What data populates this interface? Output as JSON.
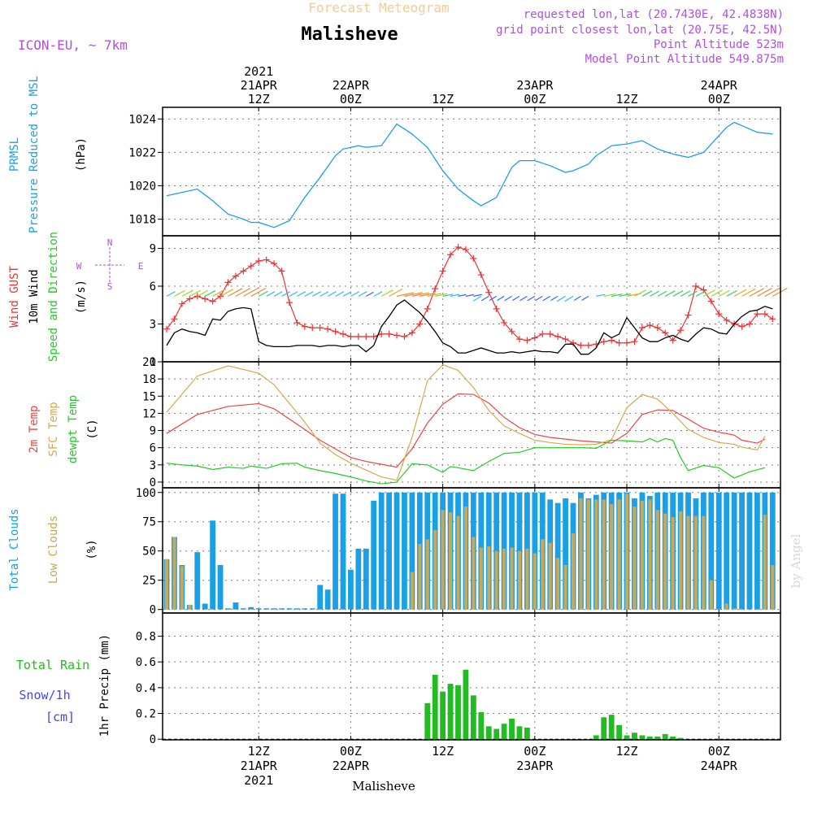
{
  "header": {
    "title": "Malisheve",
    "subtitle": "Forecast Meteogram",
    "model": "ICON-EU, ~ 7km",
    "requested": "requested lon,lat (20.7430E, 42.4838N)",
    "gridpoint": "grid point closest lon,lat (20.75E, 42.5N)",
    "point_alt": "Point Altitude 523m",
    "model_alt": "Model Point Altitude 549.875m"
  },
  "footer": {
    "location": "Malisheve",
    "watermark": "by Angel"
  },
  "colors": {
    "pressure": "#1aa0e6",
    "gust": "#ee3333",
    "wind": "#000000",
    "temp2m": "#ee4444",
    "sfc": "#d9a84e",
    "dewpt": "#22cc22",
    "total_cloud": "#1aa0e6",
    "low_cloud": "#c9a857",
    "rain": "#22bb22",
    "snow": "#4444ee",
    "purple": "#b04fdf"
  },
  "time_axis": {
    "top_labels": [
      {
        "h": 12,
        "lines": [
          "2021",
          "21APR",
          "12Z"
        ]
      },
      {
        "h": 24,
        "lines": [
          "22APR",
          "00Z"
        ]
      },
      {
        "h": 36,
        "lines": [
          "12Z"
        ]
      },
      {
        "h": 48,
        "lines": [
          "23APR",
          "00Z"
        ]
      },
      {
        "h": 60,
        "lines": [
          "12Z"
        ]
      },
      {
        "h": 72,
        "lines": [
          "24APR",
          "00Z"
        ]
      }
    ],
    "bottom_labels": [
      {
        "h": 12,
        "lines": [
          "12Z",
          "21APR",
          "2021"
        ]
      },
      {
        "h": 24,
        "lines": [
          "00Z",
          "22APR"
        ]
      },
      {
        "h": 36,
        "lines": [
          "12Z"
        ]
      },
      {
        "h": 48,
        "lines": [
          "00Z",
          "23APR"
        ]
      },
      {
        "h": 60,
        "lines": [
          "12Z"
        ]
      },
      {
        "h": 72,
        "lines": [
          "00Z",
          "24APR"
        ]
      }
    ]
  },
  "panel_labels": {
    "pressure": [
      {
        "text": "PRMSL",
        "color": "pressure"
      },
      {
        "text": "Pressure Reduced to MSL",
        "color": "pressure"
      },
      {
        "text": "(hPa)",
        "color": "wind"
      }
    ],
    "wind": [
      {
        "text": "Wind GUST",
        "color": "gust"
      },
      {
        "text": "10m Wind",
        "color": "wind"
      },
      {
        "text": "Speed and Direction",
        "color": "dewpt"
      },
      {
        "text": "(m/s)",
        "color": "wind"
      }
    ],
    "compass": {
      "n": "N",
      "s": "S",
      "w": "W",
      "e": "E"
    },
    "temp": [
      {
        "text": "2m Temp",
        "color": "temp2m"
      },
      {
        "text": "SFC Temp",
        "color": "sfc"
      },
      {
        "text": "dewpt Temp",
        "color": "dewpt"
      },
      {
        "text": "(C)",
        "color": "wind"
      }
    ],
    "cloud": [
      {
        "text": "Total Clouds",
        "color": "total_cloud"
      },
      {
        "text": "Low Clouds",
        "color": "low_cloud"
      },
      {
        "text": "(%)",
        "color": "wind"
      }
    ],
    "precip_v": "1hr Precip (mm)",
    "precip_h": [
      {
        "text": "Total  Rain",
        "color": "rain"
      },
      {
        "text": "Snow/1h",
        "color": "snow"
      },
      {
        "text": "[cm]",
        "color": "snow"
      }
    ]
  },
  "chart_data": [
    {
      "type": "line",
      "name": "pressure",
      "ylabel": "Pressure Reduced to MSL (hPa)",
      "ylim": [
        1017.0,
        1024.7
      ],
      "yticks": [
        1018,
        1020,
        1022,
        1024
      ],
      "series": [
        {
          "name": "PRMSL",
          "x": [
            0,
            4,
            6,
            8,
            10,
            11,
            12,
            14,
            16,
            18,
            20,
            22,
            23,
            25,
            26,
            28,
            30,
            32,
            34,
            36,
            38,
            40,
            41,
            43,
            45,
            46,
            48,
            50,
            52,
            53,
            55,
            56,
            58,
            60,
            62,
            64,
            66,
            68,
            70,
            71,
            73,
            74,
            75,
            77,
            79
          ],
          "y": [
            1019.4,
            1019.8,
            1019.1,
            1018.3,
            1018.0,
            1017.8,
            1017.8,
            1017.5,
            1017.9,
            1019.3,
            1020.5,
            1021.8,
            1022.2,
            1022.4,
            1022.3,
            1022.4,
            1023.7,
            1023.1,
            1022.3,
            1020.9,
            1019.8,
            1019.1,
            1018.8,
            1019.3,
            1021.1,
            1021.5,
            1021.5,
            1021.2,
            1020.8,
            1020.9,
            1021.3,
            1021.8,
            1022.4,
            1022.5,
            1022.7,
            1022.2,
            1021.9,
            1021.7,
            1022.0,
            1022.5,
            1023.5,
            1023.8,
            1023.6,
            1023.2,
            1023.1
          ]
        }
      ]
    },
    {
      "type": "line",
      "name": "wind",
      "ylabel": "(m/s)",
      "ylim": [
        0,
        10
      ],
      "yticks": [
        0,
        3,
        6,
        9
      ],
      "x": [
        0,
        1,
        2,
        3,
        4,
        5,
        6,
        7,
        8,
        9,
        10,
        11,
        12,
        13,
        14,
        15,
        16,
        17,
        18,
        19,
        20,
        21,
        22,
        23,
        24,
        25,
        26,
        27,
        28,
        29,
        30,
        31,
        32,
        33,
        34,
        35,
        36,
        37,
        38,
        39,
        40,
        41,
        42,
        43,
        44,
        45,
        46,
        47,
        48,
        49,
        50,
        51,
        52,
        53,
        54,
        55,
        56,
        57,
        58,
        59,
        60,
        61,
        62,
        63,
        64,
        65,
        66,
        67,
        68,
        69,
        70,
        71,
        72,
        73,
        74,
        75,
        76,
        77,
        78,
        79
      ],
      "series": [
        {
          "name": "Wind GUST",
          "marker": "plus",
          "y": [
            2.6,
            3.4,
            4.6,
            5.0,
            5.2,
            5.0,
            4.8,
            5.2,
            6.3,
            6.8,
            7.2,
            7.6,
            8.0,
            8.1,
            7.8,
            7.2,
            4.7,
            3.1,
            2.8,
            2.7,
            2.7,
            2.6,
            2.4,
            2.2,
            2.0,
            2.0,
            2.0,
            2.0,
            2.2,
            2.2,
            2.1,
            2.0,
            2.3,
            3.0,
            4.2,
            5.8,
            7.2,
            8.5,
            9.1,
            8.9,
            8.2,
            6.9,
            5.5,
            4.2,
            3.1,
            2.4,
            1.8,
            1.7,
            1.9,
            2.2,
            2.2,
            2.0,
            1.8,
            1.5,
            1.3,
            1.3,
            1.4,
            1.6,
            1.7,
            1.5,
            1.5,
            1.6,
            2.7,
            2.9,
            2.7,
            2.3,
            1.7,
            2.5,
            3.7,
            6.0,
            5.7,
            4.8,
            3.8,
            3.3,
            3.0,
            2.8,
            3.0,
            3.8,
            3.8,
            3.4
          ]
        },
        {
          "name": "10m Wind",
          "y": [
            1.3,
            2.3,
            2.6,
            2.4,
            2.3,
            2.1,
            3.4,
            3.3,
            4.0,
            4.2,
            4.3,
            4.2,
            1.6,
            1.3,
            1.2,
            1.2,
            1.2,
            1.3,
            1.3,
            1.3,
            1.2,
            1.3,
            1.3,
            1.2,
            1.3,
            1.3,
            0.8,
            1.3,
            2.8,
            3.6,
            4.5,
            4.9,
            4.4,
            3.9,
            3.2,
            2.4,
            1.5,
            1.2,
            0.7,
            0.7,
            0.9,
            1.1,
            0.9,
            0.7,
            0.7,
            0.8,
            0.7,
            0.8,
            0.9,
            0.8,
            0.8,
            0.7,
            1.4,
            1.4,
            0.6,
            0.6,
            1.1,
            2.3,
            1.9,
            2.2,
            3.5,
            2.7,
            1.9,
            1.6,
            1.6,
            1.9,
            2.1,
            1.8,
            1.6,
            2.2,
            2.7,
            2.6,
            2.3,
            2.2,
            3.0,
            3.6,
            4.0,
            4.1,
            4.4,
            4.2
          ]
        }
      ]
    },
    {
      "type": "line",
      "name": "temperature",
      "ylabel": "(C)",
      "ylim": [
        -1,
        21
      ],
      "yticks": [
        0,
        3,
        6,
        9,
        12,
        15,
        18,
        21
      ],
      "series": [
        {
          "name": "2m Temp",
          "x": [
            0,
            4,
            8,
            12,
            14,
            18,
            20,
            22,
            24,
            26,
            28,
            30,
            32,
            34,
            36,
            38,
            40,
            42,
            44,
            46,
            48,
            50,
            52,
            54,
            56,
            58,
            60,
            62,
            64,
            66,
            68,
            70,
            72,
            74,
            75,
            77,
            78
          ],
          "y": [
            8.5,
            11.8,
            13.2,
            13.7,
            12.8,
            9.2,
            7.3,
            5.8,
            4.3,
            3.6,
            3.1,
            2.6,
            5.8,
            10.3,
            13.6,
            15.4,
            15.3,
            13.8,
            11.3,
            9.5,
            8.3,
            7.8,
            7.5,
            7.2,
            7.0,
            6.8,
            8.5,
            11.8,
            12.6,
            12.5,
            11.0,
            9.4,
            8.7,
            8.2,
            7.3,
            6.8,
            7.5
          ]
        },
        {
          "name": "SFC Temp",
          "x": [
            0,
            4,
            8,
            12,
            14,
            18,
            20,
            22,
            24,
            26,
            28,
            30,
            32,
            34,
            36,
            38,
            40,
            42,
            44,
            46,
            48,
            50,
            52,
            54,
            56,
            58,
            60,
            62,
            64,
            66,
            68,
            70,
            72,
            74,
            75,
            77,
            78
          ],
          "y": [
            12.2,
            18.5,
            20.3,
            19.0,
            17.0,
            10.5,
            6.8,
            4.8,
            3.3,
            2.1,
            0.9,
            0.3,
            7.8,
            17.7,
            20.5,
            19.5,
            16.5,
            12.5,
            9.8,
            8.5,
            7.3,
            6.9,
            6.6,
            6.5,
            6.6,
            7.4,
            13.0,
            15.3,
            14.5,
            12.0,
            9.2,
            7.8,
            6.9,
            6.6,
            6.1,
            5.6,
            8.0
          ]
        },
        {
          "name": "dewpt Temp",
          "x": [
            0,
            2,
            4,
            6,
            8,
            10,
            11,
            13,
            15,
            17,
            18,
            20,
            22,
            24,
            26,
            28,
            30,
            32,
            34,
            36,
            37,
            38,
            40,
            42,
            44,
            46,
            48,
            50,
            52,
            54,
            56,
            58,
            60,
            62,
            63,
            64,
            65,
            66,
            67,
            68,
            70,
            72,
            74,
            76,
            78
          ],
          "y": [
            3.3,
            3.0,
            2.8,
            2.2,
            2.6,
            2.4,
            2.8,
            2.4,
            3.2,
            3.3,
            2.6,
            2.0,
            1.5,
            0.9,
            0.2,
            -0.3,
            0.0,
            3.2,
            3.0,
            1.7,
            2.7,
            2.5,
            2.0,
            3.6,
            5.0,
            5.2,
            6.0,
            6.0,
            6.0,
            6.0,
            5.9,
            7.3,
            7.2,
            7.0,
            7.6,
            7.0,
            7.6,
            7.3,
            4.3,
            2.0,
            2.9,
            2.5,
            0.7,
            1.8,
            2.5
          ]
        }
      ]
    },
    {
      "type": "bar",
      "name": "clouds",
      "ylabel": "(%)",
      "ylim": [
        -3,
        104
      ],
      "yticks": [
        0,
        25,
        50,
        75,
        100
      ],
      "x": [
        0,
        1,
        2,
        3,
        4,
        5,
        6,
        7,
        8,
        9,
        10,
        11,
        12,
        13,
        14,
        15,
        16,
        17,
        18,
        19,
        20,
        21,
        22,
        23,
        24,
        25,
        26,
        27,
        28,
        29,
        30,
        31,
        32,
        33,
        34,
        35,
        36,
        37,
        38,
        39,
        40,
        41,
        42,
        43,
        44,
        45,
        46,
        47,
        48,
        49,
        50,
        51,
        52,
        53,
        54,
        55,
        56,
        57,
        58,
        59,
        60,
        61,
        62,
        63,
        64,
        65,
        66,
        67,
        68,
        69,
        70,
        71,
        72,
        73,
        74,
        75,
        76,
        77,
        78,
        79
      ],
      "series": [
        {
          "name": "Total Clouds",
          "values": [
            43,
            62,
            38,
            4,
            49,
            5,
            76,
            38,
            1,
            6,
            1,
            2,
            1,
            1,
            1,
            1,
            1,
            1,
            1,
            1,
            21,
            17,
            99,
            99,
            34,
            52,
            52,
            93,
            100,
            100,
            100,
            100,
            100,
            100,
            100,
            100,
            100,
            100,
            100,
            100,
            100,
            100,
            100,
            100,
            100,
            100,
            100,
            100,
            100,
            100,
            94,
            91,
            95,
            91,
            100,
            95,
            98,
            100,
            100,
            100,
            100,
            95,
            100,
            97,
            100,
            100,
            100,
            100,
            100,
            95,
            100,
            100,
            100,
            100,
            100,
            100,
            100,
            100,
            100,
            100
          ]
        },
        {
          "name": "Low Clouds",
          "values": [
            43,
            62,
            37,
            4,
            0,
            0,
            0,
            0,
            0,
            0,
            0,
            0,
            0,
            0,
            0,
            0,
            0,
            0,
            0,
            0,
            0,
            0,
            0,
            0,
            0,
            0,
            0,
            0,
            0,
            0,
            0,
            0,
            32,
            56,
            60,
            68,
            85,
            83,
            80,
            88,
            62,
            53,
            54,
            50,
            52,
            53,
            50,
            52,
            48,
            60,
            57,
            44,
            38,
            65,
            95,
            94,
            94,
            94,
            90,
            94,
            99,
            88,
            93,
            94,
            85,
            82,
            79,
            84,
            80,
            80,
            80,
            25,
            0,
            5,
            1,
            0,
            0,
            0,
            81,
            38
          ]
        }
      ]
    },
    {
      "type": "bar",
      "name": "precipitation",
      "ylabel": "1hr Precip (mm)",
      "ylim": [
        -0.005,
        0.98
      ],
      "yticks": [
        0,
        0.2,
        0.4,
        0.6,
        0.8
      ],
      "x": [
        34,
        35,
        36,
        37,
        38,
        39,
        40,
        41,
        42,
        43,
        44,
        45,
        46,
        47,
        56,
        57,
        58,
        59,
        60,
        61,
        62,
        63,
        64,
        65,
        66,
        67
      ],
      "series": [
        {
          "name": "Total Rain",
          "values": [
            0.28,
            0.5,
            0.37,
            0.43,
            0.42,
            0.54,
            0.34,
            0.21,
            0.1,
            0.08,
            0.12,
            0.16,
            0.1,
            0.09,
            0.03,
            0.17,
            0.19,
            0.11,
            0.03,
            0.05,
            0.03,
            0.02,
            0.02,
            0.04,
            0.02,
            0.01
          ]
        }
      ]
    }
  ]
}
